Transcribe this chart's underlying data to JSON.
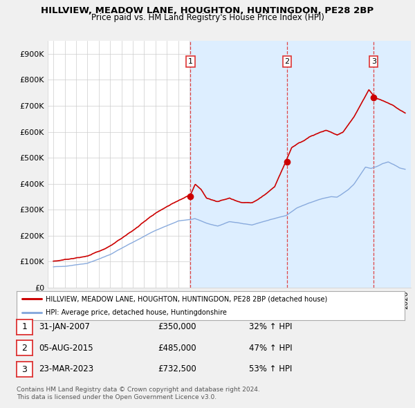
{
  "title1": "HILLVIEW, MEADOW LANE, HOUGHTON, HUNTINGDON, PE28 2BP",
  "title2": "Price paid vs. HM Land Registry's House Price Index (HPI)",
  "legend_line1": "HILLVIEW, MEADOW LANE, HOUGHTON, HUNTINGDON, PE28 2BP (detached house)",
  "legend_line2": "HPI: Average price, detached house, Huntingdonshire",
  "sales": [
    {
      "num": 1,
      "date": "31-JAN-2007",
      "price": 350000,
      "hpi_pct": "32% ↑ HPI",
      "x": 2007.08
    },
    {
      "num": 2,
      "date": "05-AUG-2015",
      "price": 485000,
      "hpi_pct": "47% ↑ HPI",
      "x": 2015.58
    },
    {
      "num": 3,
      "date": "23-MAR-2023",
      "price": 732500,
      "hpi_pct": "53% ↑ HPI",
      "x": 2023.22
    }
  ],
  "footnote1": "Contains HM Land Registry data © Crown copyright and database right 2024.",
  "footnote2": "This data is licensed under the Open Government Licence v3.0.",
  "ylim": [
    0,
    950000
  ],
  "yticks": [
    0,
    100000,
    200000,
    300000,
    400000,
    500000,
    600000,
    700000,
    800000,
    900000
  ],
  "ytick_labels": [
    "£0",
    "£100K",
    "£200K",
    "£300K",
    "£400K",
    "£500K",
    "£600K",
    "£700K",
    "£800K",
    "£900K"
  ],
  "xlim": [
    1994.5,
    2026.5
  ],
  "background_color": "#f0f0f0",
  "plot_bg": "#ffffff",
  "shade_bg": "#ddeeff",
  "grid_color": "#cccccc",
  "line_color_property": "#cc0000",
  "line_color_hpi": "#88aadd",
  "dashed_line_color": "#dd3333"
}
